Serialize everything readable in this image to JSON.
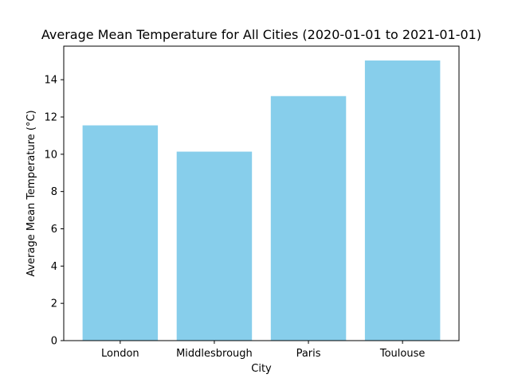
{
  "chart_data": {
    "type": "bar",
    "title": "Average Mean Temperature for All Cities (2020-01-01 to 2021-01-01)",
    "xlabel": "City",
    "ylabel": "Average Mean Temperature (°C)",
    "categories": [
      "London",
      "Middlesbrough",
      "Paris",
      "Toulouse"
    ],
    "values": [
      11.55,
      10.14,
      13.12,
      15.03
    ],
    "ylim": [
      0,
      15.8
    ],
    "yticks": [
      0,
      2,
      4,
      6,
      8,
      10,
      12,
      14
    ],
    "ytick_labels": [
      "0",
      "2",
      "4",
      "6",
      "8",
      "10",
      "12",
      "14"
    ],
    "grid": false,
    "bar_color": "#87ceeb"
  }
}
